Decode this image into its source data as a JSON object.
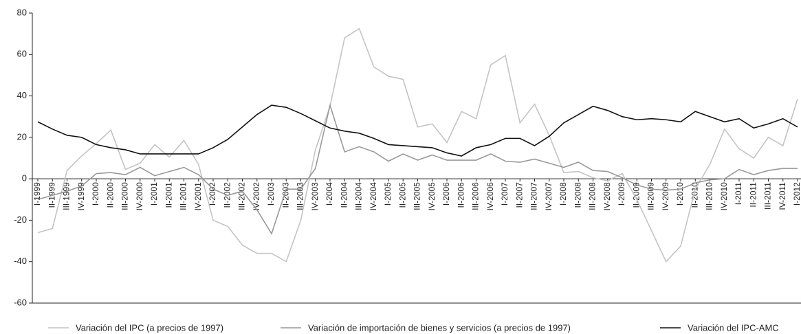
{
  "chart_data": {
    "type": "line",
    "categories": [
      "I-1999",
      "II-1999",
      "III-1999",
      "IV-1999",
      "I-2000",
      "II-2000",
      "III-2000",
      "IV-2000",
      "I-2001",
      "II-2001",
      "III-2001",
      "IV-2001",
      "I-2002",
      "II-2002",
      "III-2002",
      "IV-2002",
      "I-2003",
      "II-2003",
      "III-2003",
      "IV-2003",
      "I-2004",
      "II-2004",
      "III-2004",
      "IV-2004",
      "I-2005",
      "II-2005",
      "III-2005",
      "IV-2005",
      "I-2006",
      "II-2006",
      "III-2006",
      "IV-2006",
      "I-2007",
      "II-2007",
      "III-2007",
      "IV-2007",
      "I-2008",
      "II-2008",
      "III-2008",
      "IV-2008",
      "I-2009",
      "II-2009",
      "III-2009",
      "IV-2009",
      "I-2010",
      "II-2010",
      "III-2010",
      "IV-2010",
      "I-2011",
      "II-2011",
      "III-2011",
      "IV-2011",
      "I-2012"
    ],
    "series": [
      {
        "name": "Variación del IPC (a precios de 1997)",
        "color": "#c4c4c4",
        "values": [
          -26,
          -24,
          4,
          11,
          17,
          23.5,
          4.5,
          7.5,
          16.5,
          10.5,
          18.5,
          7,
          -20,
          -23,
          -32,
          -36,
          -36,
          -40,
          -20,
          14,
          35,
          68,
          72.5,
          54,
          49.5,
          48,
          25,
          26.5,
          17.5,
          32.5,
          29,
          55,
          59.5,
          27,
          36,
          21,
          3,
          3.5,
          0.5,
          -1,
          2.5,
          -10,
          -25,
          -40,
          -32.5,
          -5,
          7,
          24,
          14.5,
          10,
          20,
          16,
          38.5
        ]
      },
      {
        "name": "Variación de importación de bienes y servicios (a precios de 1997)",
        "color": "#999999",
        "values": [
          -10,
          -8,
          -6,
          -3.5,
          2.5,
          3,
          2,
          5.5,
          1.5,
          3.5,
          5.5,
          2,
          -5,
          -8,
          -6,
          -15,
          -26.5,
          -5,
          -5,
          5,
          35.5,
          13,
          15.5,
          13,
          8.5,
          12,
          9,
          11.5,
          9,
          9,
          9,
          12,
          8.5,
          8,
          9.5,
          7.5,
          5.5,
          8,
          4,
          3.5,
          0.5,
          -3,
          -5,
          -5.5,
          -5,
          -2,
          -0.5,
          0,
          4.5,
          2,
          4,
          5,
          5
        ]
      },
      {
        "name": "Variación del IPC-AMC",
        "color": "#111111",
        "values": [
          27.5,
          24,
          21,
          20,
          16.5,
          15,
          14,
          12,
          12,
          12,
          12,
          12,
          15,
          19,
          25,
          31,
          35.5,
          34.5,
          31.5,
          28,
          24.5,
          23,
          22,
          19.5,
          16.5,
          16,
          15.5,
          15,
          12.5,
          11,
          15,
          16.5,
          19.5,
          19.5,
          16,
          20.5,
          27,
          31,
          35,
          33,
          30,
          28.5,
          29,
          28.5,
          27.5,
          32.5,
          30,
          27.5,
          29,
          24.5,
          26.5,
          29,
          25
        ]
      }
    ],
    "ylim": [
      -60,
      80
    ],
    "yticks": [
      -60,
      -40,
      -20,
      0,
      20,
      40,
      60,
      80
    ]
  }
}
